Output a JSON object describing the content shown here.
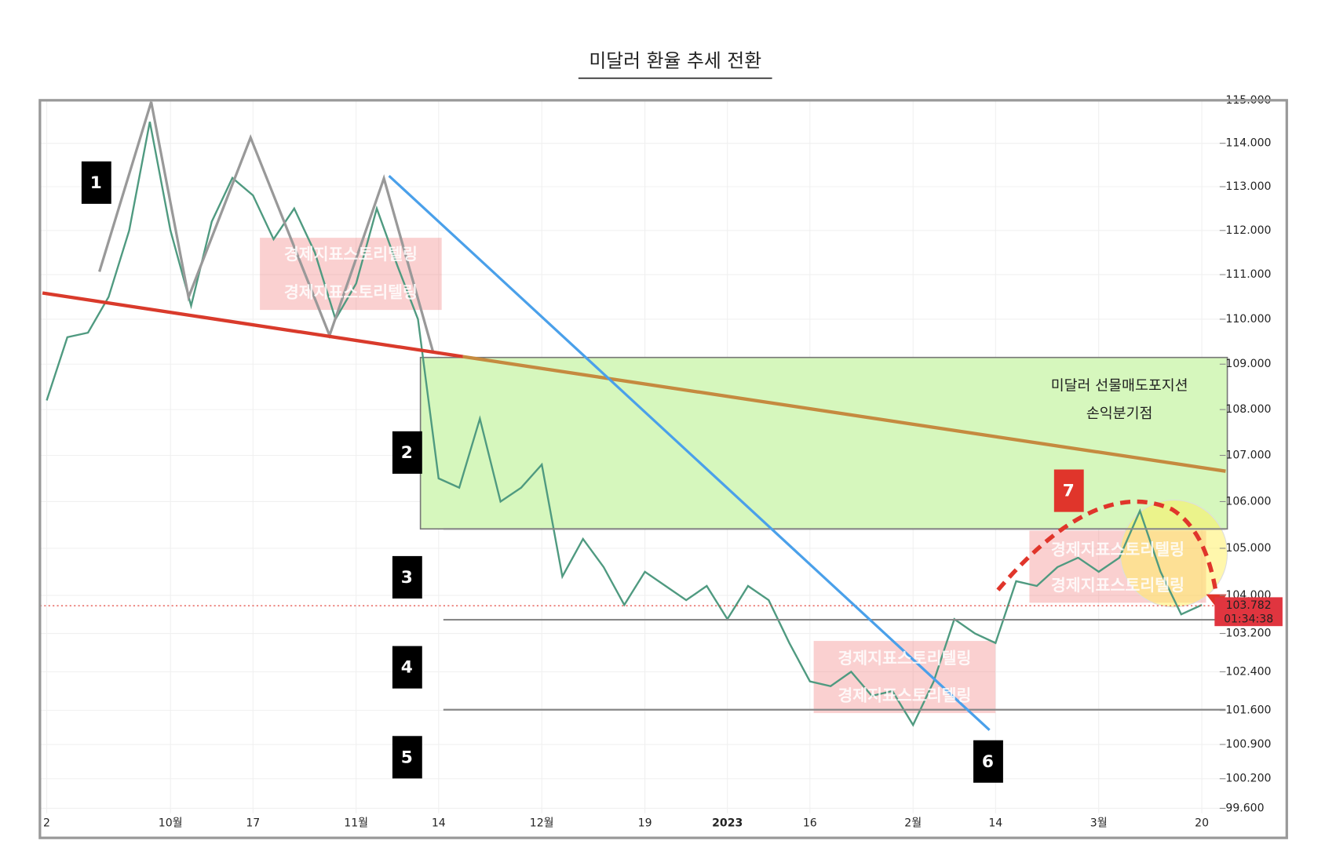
{
  "chart_data": {
    "type": "line",
    "title": "미달러 환율 추세 전환",
    "log_scale": true,
    "grid": true,
    "categories": [
      "2",
      null,
      null,
      null,
      null,
      null,
      "10월",
      null,
      null,
      null,
      "17",
      null,
      null,
      null,
      null,
      "11월",
      null,
      null,
      null,
      "14",
      null,
      null,
      null,
      null,
      "12월",
      null,
      null,
      null,
      null,
      "19",
      null,
      null,
      null,
      "2023",
      null,
      null,
      null,
      "16",
      null,
      null,
      null,
      null,
      "2월",
      null,
      null,
      null,
      "14",
      null,
      null,
      null,
      null,
      "3월",
      null,
      null,
      null,
      null,
      "20"
    ],
    "series": [
      {
        "color": "#4f9a80",
        "values": [
          108.2,
          109.6,
          109.7,
          110.5,
          112.0,
          114.5,
          112.0,
          110.3,
          112.2,
          113.2,
          112.8,
          111.8,
          112.5,
          111.5,
          110.0,
          110.8,
          112.5,
          111.2,
          110.0,
          106.5,
          106.3,
          107.8,
          106.0,
          106.3,
          106.8,
          104.4,
          105.2,
          104.6,
          103.8,
          104.5,
          104.2,
          103.9,
          104.2,
          103.5,
          104.2,
          103.9,
          103.0,
          102.2,
          102.1,
          102.4,
          101.9,
          102.0,
          101.3,
          102.2,
          103.5,
          103.2,
          103.0,
          104.3,
          104.2,
          104.6,
          104.8,
          104.5,
          104.8,
          105.8,
          104.5,
          103.6,
          103.8
        ]
      }
    ],
    "ylim": [
      99.5,
      115
    ],
    "yticks": [
      {
        "value": 115,
        "label": "115.000"
      },
      {
        "value": 114,
        "label": "114.000"
      },
      {
        "value": 113,
        "label": "113.000"
      },
      {
        "value": 112,
        "label": "112.000"
      },
      {
        "value": 111,
        "label": "111.000"
      },
      {
        "value": 110,
        "label": "110.000"
      },
      {
        "value": 109,
        "label": "109.000"
      },
      {
        "value": 108,
        "label": "108.000"
      },
      {
        "value": 107,
        "label": "107.000"
      },
      {
        "value": 106,
        "label": "106.000"
      },
      {
        "value": 105,
        "label": "105.000"
      },
      {
        "value": 104,
        "label": "104.000"
      },
      {
        "value": 103.2,
        "label": "103.200"
      },
      {
        "value": 102.4,
        "label": "102.400"
      },
      {
        "value": 101.6,
        "label": "101.600"
      },
      {
        "value": 100.9,
        "label": "100.900"
      },
      {
        "value": 100.2,
        "label": "100.200"
      },
      {
        "value": 99.6,
        "label": "99.600"
      }
    ],
    "last_price": 103.782,
    "last_timer": "01:34:38",
    "markers": [
      "1",
      "2",
      "3",
      "4",
      "5",
      "6",
      "7"
    ],
    "zone_label": [
      "미달러 선물매도포지션",
      "손익분기점"
    ],
    "watermark": "경제지표스토리텔링"
  }
}
